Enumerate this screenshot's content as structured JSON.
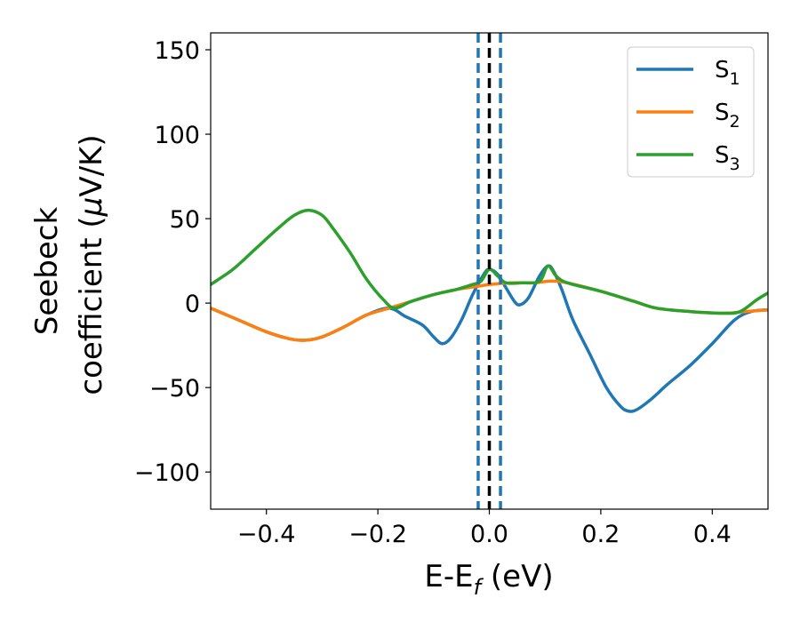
{
  "chart_data": {
    "type": "line",
    "title": "",
    "xlabel": {
      "main": "E-E",
      "sub": "f",
      "tail": " (eV)"
    },
    "ylabel": {
      "line1": "Seebeck",
      "line2_main": "coefficient  (",
      "line2_mu": "μ",
      "line2_tail": "V/K)"
    },
    "xlim": [
      -0.5,
      0.5
    ],
    "ylim": [
      -122,
      160
    ],
    "xticks": [
      -0.4,
      -0.2,
      0.0,
      0.2,
      0.4
    ],
    "xtick_labels": [
      "−0.4",
      "−0.2",
      "0.0",
      "0.2",
      "0.4"
    ],
    "yticks": [
      -100,
      -50,
      0,
      50,
      100,
      150
    ],
    "ytick_labels": [
      "−100",
      "−50",
      "0",
      "50",
      "100",
      "150"
    ],
    "grid": false,
    "legend_position": "top-right",
    "vlines": [
      {
        "x": 0.0,
        "color": "#000000",
        "style": "dashed"
      },
      {
        "x": -0.02,
        "color": "#1f77b4",
        "style": "dashed"
      },
      {
        "x": 0.02,
        "color": "#1f77b4",
        "style": "dashed"
      }
    ],
    "series": [
      {
        "name": "S",
        "sub": "1",
        "color": "#1f77b4",
        "points": [
          [
            -0.5,
            -3
          ],
          [
            -0.45,
            -10
          ],
          [
            -0.4,
            -17
          ],
          [
            -0.36,
            -21
          ],
          [
            -0.33,
            -22
          ],
          [
            -0.3,
            -20
          ],
          [
            -0.26,
            -14
          ],
          [
            -0.22,
            -7
          ],
          [
            -0.18,
            -3
          ],
          [
            -0.15,
            -8
          ],
          [
            -0.12,
            -13
          ],
          [
            -0.1,
            -20
          ],
          [
            -0.085,
            -24
          ],
          [
            -0.07,
            -21
          ],
          [
            -0.05,
            -10
          ],
          [
            -0.03,
            5
          ],
          [
            -0.01,
            17
          ],
          [
            0.0,
            20
          ],
          [
            0.015,
            17
          ],
          [
            0.03,
            9
          ],
          [
            0.045,
            1
          ],
          [
            0.055,
            -1
          ],
          [
            0.07,
            3
          ],
          [
            0.09,
            16
          ],
          [
            0.105,
            22
          ],
          [
            0.115,
            19
          ],
          [
            0.13,
            8
          ],
          [
            0.15,
            -10
          ],
          [
            0.18,
            -30
          ],
          [
            0.21,
            -50
          ],
          [
            0.235,
            -61
          ],
          [
            0.25,
            -64
          ],
          [
            0.265,
            -63
          ],
          [
            0.29,
            -57
          ],
          [
            0.32,
            -48
          ],
          [
            0.36,
            -37
          ],
          [
            0.4,
            -24
          ],
          [
            0.44,
            -10
          ],
          [
            0.47,
            -5
          ],
          [
            0.5,
            -4
          ]
        ]
      },
      {
        "name": "S",
        "sub": "2",
        "color": "#ff7f0e",
        "points": [
          [
            -0.5,
            -3
          ],
          [
            -0.45,
            -10
          ],
          [
            -0.4,
            -17
          ],
          [
            -0.36,
            -21
          ],
          [
            -0.33,
            -22
          ],
          [
            -0.3,
            -20
          ],
          [
            -0.26,
            -14
          ],
          [
            -0.22,
            -7
          ],
          [
            -0.18,
            -3
          ],
          [
            -0.14,
            1
          ],
          [
            -0.1,
            5
          ],
          [
            -0.06,
            8
          ],
          [
            -0.02,
            10
          ],
          [
            0.0,
            11
          ],
          [
            0.04,
            12
          ],
          [
            0.08,
            12
          ],
          [
            0.11,
            13
          ],
          [
            0.14,
            12
          ],
          [
            0.2,
            7
          ],
          [
            0.26,
            1
          ],
          [
            0.3,
            -3
          ],
          [
            0.36,
            -5
          ],
          [
            0.42,
            -6
          ],
          [
            0.46,
            -5
          ],
          [
            0.5,
            -4
          ]
        ]
      },
      {
        "name": "S",
        "sub": "3",
        "color": "#2ca02c",
        "points": [
          [
            -0.5,
            11
          ],
          [
            -0.46,
            20
          ],
          [
            -0.42,
            32
          ],
          [
            -0.38,
            44
          ],
          [
            -0.35,
            52
          ],
          [
            -0.325,
            55
          ],
          [
            -0.3,
            52
          ],
          [
            -0.28,
            44
          ],
          [
            -0.25,
            30
          ],
          [
            -0.22,
            14
          ],
          [
            -0.19,
            2
          ],
          [
            -0.17,
            -3
          ],
          [
            -0.14,
            1
          ],
          [
            -0.1,
            5
          ],
          [
            -0.06,
            8
          ],
          [
            -0.03,
            11
          ],
          [
            -0.015,
            13
          ],
          [
            0.0,
            20
          ],
          [
            0.015,
            16
          ],
          [
            0.03,
            12
          ],
          [
            0.06,
            12
          ],
          [
            0.09,
            13
          ],
          [
            0.105,
            22
          ],
          [
            0.12,
            16
          ],
          [
            0.14,
            12
          ],
          [
            0.2,
            7
          ],
          [
            0.26,
            1
          ],
          [
            0.3,
            -3
          ],
          [
            0.36,
            -5
          ],
          [
            0.42,
            -6
          ],
          [
            0.45,
            -5
          ],
          [
            0.48,
            2
          ],
          [
            0.5,
            6
          ]
        ]
      }
    ]
  }
}
